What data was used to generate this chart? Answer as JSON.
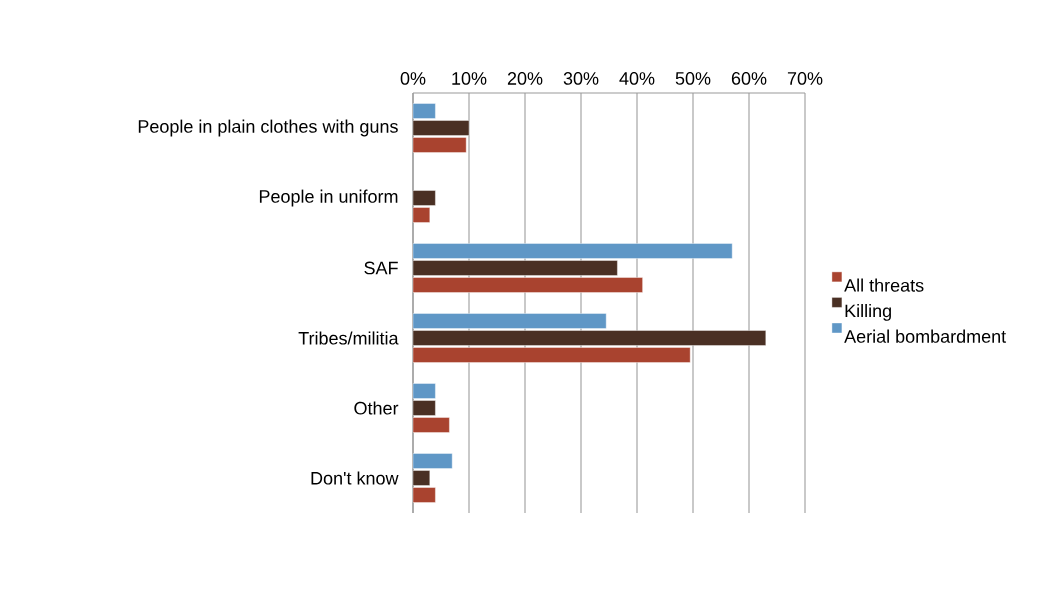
{
  "chart_data": {
    "type": "bar",
    "orientation": "horizontal",
    "categories": [
      "People in plain clothes with guns",
      "People in uniform",
      "SAF",
      "Tribes/militia",
      "Other",
      "Don't know"
    ],
    "series": [
      {
        "name": "All threats",
        "color": "#a9432f",
        "values": [
          9.5,
          3,
          41,
          49.5,
          6.5,
          4
        ]
      },
      {
        "name": "Killing",
        "color": "#4a3024",
        "values": [
          10,
          4,
          36.5,
          63,
          4,
          3
        ]
      },
      {
        "name": "Aerial bombardment",
        "color": "#5f97c6",
        "values": [
          4,
          null,
          57,
          34.5,
          4,
          7
        ]
      }
    ],
    "xlim": [
      0,
      70
    ],
    "xticks": [
      {
        "value": 0,
        "label": "0%"
      },
      {
        "value": 10,
        "label": "10%"
      },
      {
        "value": 20,
        "label": "20%"
      },
      {
        "value": 30,
        "label": "30%"
      },
      {
        "value": 40,
        "label": "40%"
      },
      {
        "value": 50,
        "label": "50%"
      },
      {
        "value": 60,
        "label": "60%"
      },
      {
        "value": 70,
        "label": "70%"
      }
    ],
    "grid": "x",
    "legend": "right"
  }
}
